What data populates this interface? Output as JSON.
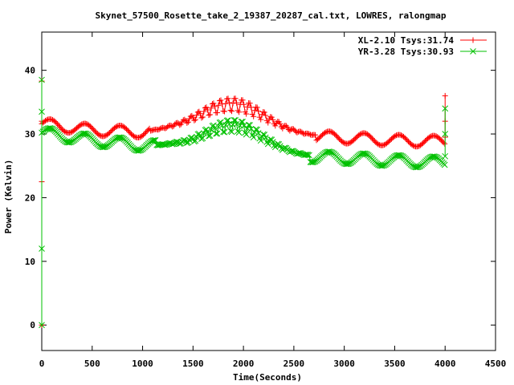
{
  "chart_data": {
    "type": "scatter",
    "title": "Skynet_57500_Rosette_take_2_19387_20287_cal.txt, LOWRES, ralongmap",
    "xlabel": "Time(Seconds)",
    "ylabel": "Power (Kelvin)",
    "xlim": [
      0,
      4500
    ],
    "ylim": [
      -4,
      46
    ],
    "x_ticks": [
      0,
      500,
      1000,
      1500,
      2000,
      2500,
      3000,
      3500,
      4000,
      4500
    ],
    "y_ticks": [
      0,
      10,
      20,
      30,
      40
    ],
    "grid": false,
    "legend_position": "top-right",
    "series": [
      {
        "name": "XL-2.10 Tsys:31.74",
        "color": "#ff0000",
        "marker": "plus",
        "baseline": [
          [
            0,
            31.6
          ],
          [
            500,
            30.6
          ],
          [
            1000,
            30.3
          ],
          [
            1300,
            30.6
          ],
          [
            1500,
            30.5
          ],
          [
            2000,
            30.1
          ],
          [
            2500,
            29.8
          ],
          [
            3000,
            29.4
          ],
          [
            3500,
            29.0
          ],
          [
            4000,
            28.8
          ]
        ],
        "bump": {
          "center": 1900,
          "sigma": 320,
          "peak_excess": 5.5
        },
        "band_halfwidth": 0.9,
        "start_spike": [
          [
            0,
            0.0
          ],
          [
            0,
            22.5
          ],
          [
            0,
            32.0
          ],
          [
            0,
            38.3
          ]
        ],
        "end_spike": [
          [
            4000,
            29.5
          ],
          [
            4000,
            32.0
          ],
          [
            4000,
            36.0
          ]
        ]
      },
      {
        "name": "YR-3.28 Tsys:30.93",
        "color": "#00c000",
        "marker": "cross",
        "baseline": [
          [
            0,
            30.2
          ],
          [
            500,
            29.0
          ],
          [
            1000,
            28.2
          ],
          [
            1300,
            28.0
          ],
          [
            1500,
            27.5
          ],
          [
            2000,
            27.2
          ],
          [
            2500,
            26.6
          ],
          [
            3000,
            26.2
          ],
          [
            3500,
            25.8
          ],
          [
            4000,
            25.5
          ]
        ],
        "bump": {
          "center": 1900,
          "sigma": 300,
          "peak_excess": 5.0
        },
        "band_halfwidth": 0.9,
        "start_spike": [
          [
            0,
            0.0
          ],
          [
            0,
            12.0
          ],
          [
            0,
            33.5
          ],
          [
            0,
            38.5
          ]
        ],
        "end_spike": [
          [
            4000,
            26.5
          ],
          [
            4000,
            30.0
          ],
          [
            4000,
            34.0
          ]
        ]
      }
    ]
  }
}
